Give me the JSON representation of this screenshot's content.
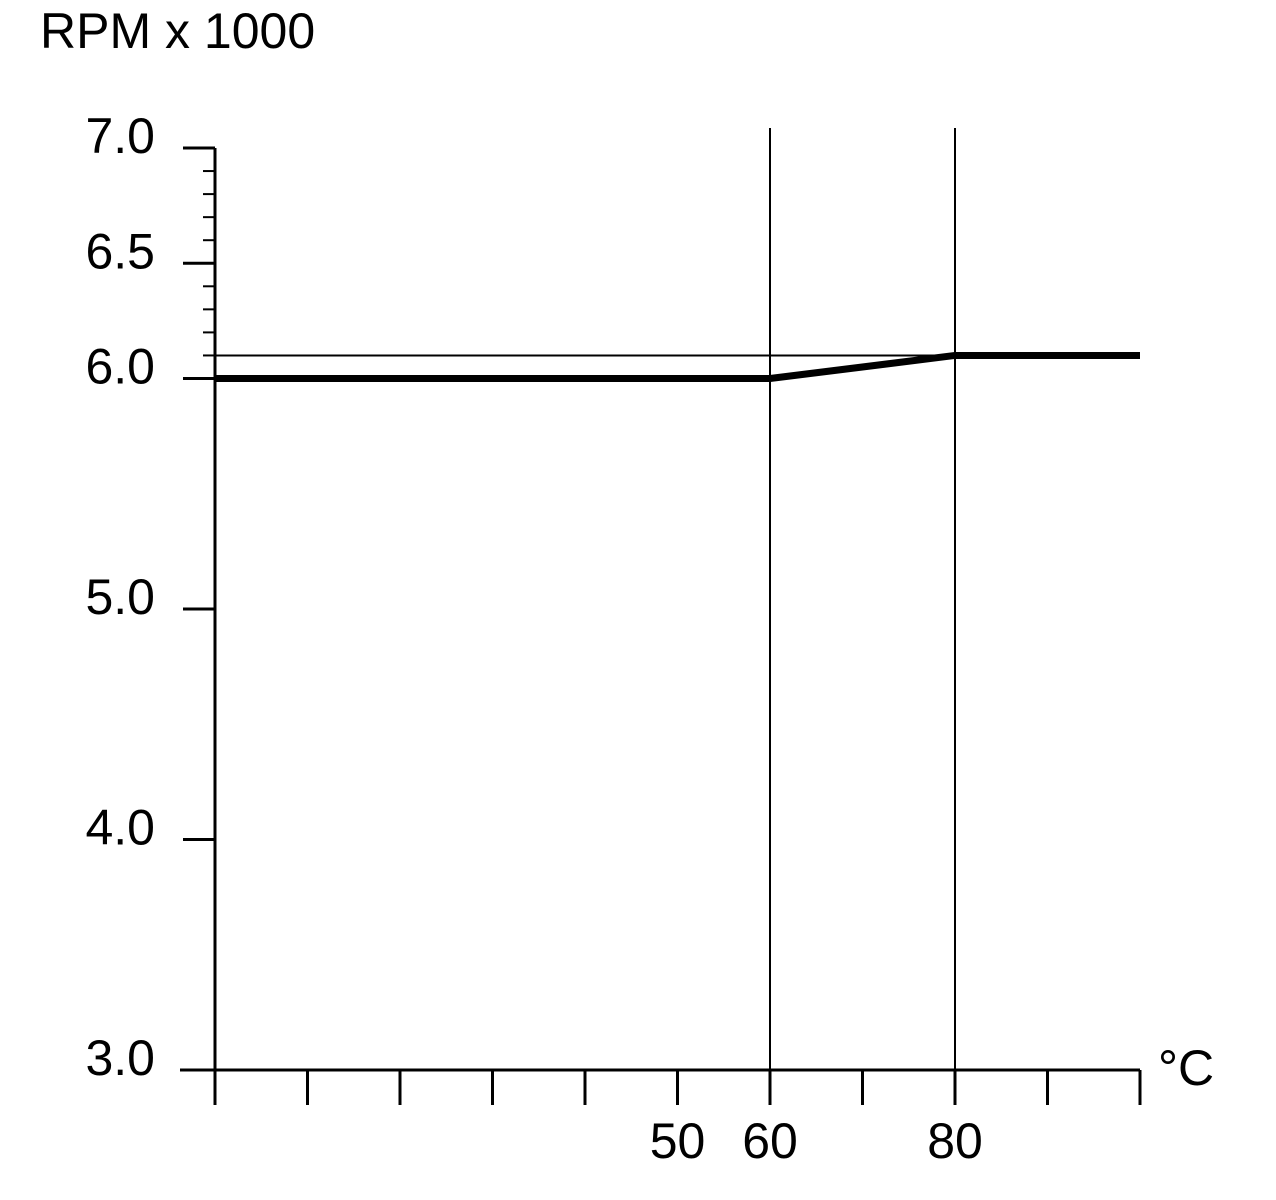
{
  "chart_data": {
    "type": "line",
    "title": "RPM x 1000",
    "x_unit": "°C",
    "x": [
      0,
      60,
      80,
      100
    ],
    "series": [
      {
        "color": "#000000",
        "values": [
          6.0,
          6.0,
          6.1,
          6.1
        ]
      }
    ],
    "xlim": [
      0,
      100
    ],
    "xticks": [
      50,
      60,
      80
    ],
    "xminor_ticks": [
      0,
      10,
      20,
      30,
      40,
      70,
      90,
      100
    ],
    "ylim": [
      3,
      7
    ],
    "yticks": [
      {
        "value": 3,
        "label": "3.0"
      },
      {
        "value": 4,
        "label": "4.0"
      },
      {
        "value": 5,
        "label": "5.0"
      },
      {
        "value": 6,
        "label": "6.0"
      },
      {
        "value": 6.5,
        "label": "6.5"
      },
      {
        "value": 7,
        "label": "7.0"
      }
    ],
    "yminor_ticks": [
      6.1,
      6.2,
      6.3,
      6.4,
      6.6,
      6.7,
      6.8,
      6.9
    ],
    "x_reference_lines": [
      60,
      80
    ],
    "y_reference_lines": [
      6.1
    ]
  }
}
